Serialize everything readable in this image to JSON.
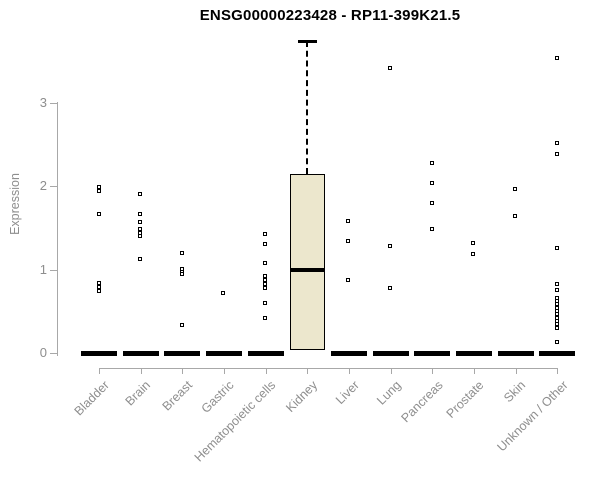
{
  "chart_data": {
    "type": "box",
    "title": "ENSG00000223428 - RP11-399K21.5",
    "ylabel": "Expression",
    "xlabel": "",
    "ylim": [
      0,
      3
    ],
    "yticks": [
      0,
      1,
      2,
      3
    ],
    "grid": false,
    "legend": "none",
    "marker_style": "open-square",
    "colors": {
      "box_fill": "#ece7cd",
      "marker_edge": "#000000",
      "median_bar": "#000000",
      "axis_text": "#8e8e8e",
      "axis_line": "#a8a8a8",
      "title_text": "#000000"
    },
    "categories": [
      "Bladder",
      "Brain",
      "Breast",
      "Gastric",
      "Hematopoietic cells",
      "Kidney",
      "Liver",
      "Lung",
      "Pancreas",
      "Prostate",
      "Skin",
      "Unknown / Other"
    ],
    "series": [
      {
        "category": "Bladder",
        "median": 0,
        "points": [
          1.99,
          1.94,
          1.66,
          0.84,
          0.79,
          0.74
        ]
      },
      {
        "category": "Brain",
        "median": 0,
        "points": [
          1.9,
          1.66,
          1.57,
          1.48,
          1.44,
          1.4,
          1.12
        ]
      },
      {
        "category": "Breast",
        "median": 0,
        "points": [
          1.2,
          1.0,
          0.97,
          0.94,
          0.33
        ]
      },
      {
        "category": "Gastric",
        "median": 0,
        "points": [
          0.71
        ]
      },
      {
        "category": "Hematopoietic cells",
        "median": 0,
        "points": [
          1.42,
          1.3,
          1.08,
          0.92,
          0.87,
          0.82,
          0.77,
          0.6,
          0.42
        ]
      },
      {
        "category": "Kidney",
        "box": {
          "q1": 0.03,
          "median": 1.0,
          "q3": 2.15,
          "whisker_high": 3.74
        },
        "points": []
      },
      {
        "category": "Liver",
        "median": 0,
        "points": [
          1.58,
          1.34,
          0.87
        ]
      },
      {
        "category": "Lung",
        "median": 0,
        "points": [
          3.42,
          1.28,
          0.78
        ]
      },
      {
        "category": "Pancreas",
        "median": 0,
        "points": [
          2.28,
          2.04,
          1.8,
          1.48
        ]
      },
      {
        "category": "Prostate",
        "median": 0,
        "points": [
          1.32,
          1.18
        ]
      },
      {
        "category": "Skin",
        "median": 0,
        "points": [
          1.96,
          1.64
        ]
      },
      {
        "category": "Unknown / Other",
        "median": 0,
        "points": [
          3.53,
          2.51,
          2.38,
          1.25,
          0.82,
          0.75,
          0.66,
          0.62,
          0.58,
          0.54,
          0.5,
          0.46,
          0.42,
          0.38,
          0.34,
          0.3,
          0.13
        ]
      }
    ]
  }
}
